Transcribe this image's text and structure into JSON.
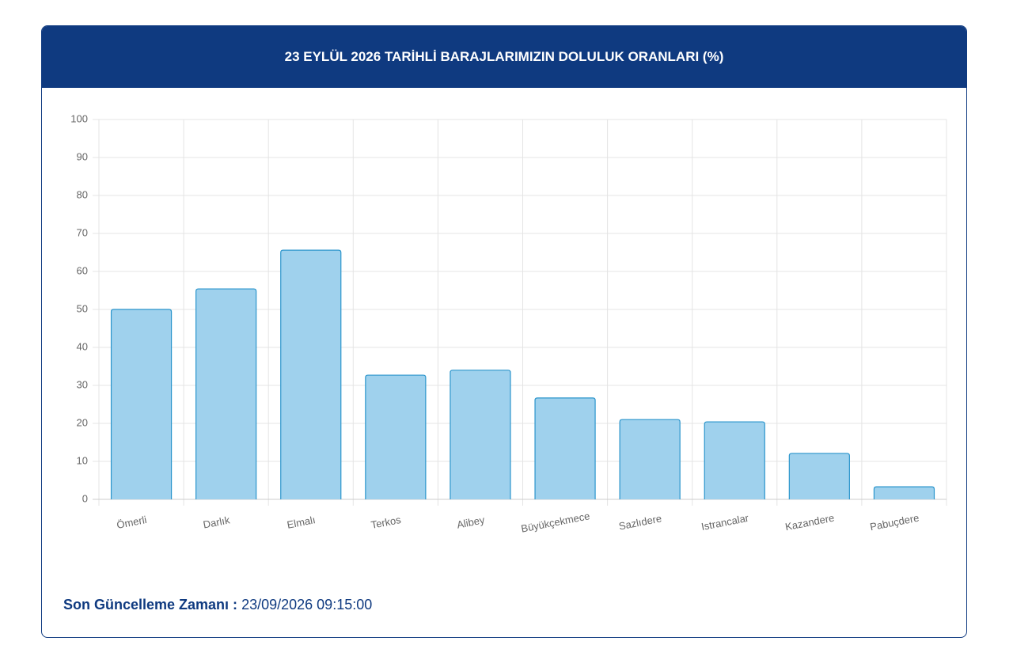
{
  "chart_data": {
    "type": "bar",
    "title": "23 EYLÜL 2026 TARİHLİ BARAJLARIMIZIN DOLULUK ORANLARI (%)",
    "categories": [
      "Ömerli",
      "Darlık",
      "Elmalı",
      "Terkos",
      "Alibey",
      "Büyükçekmece",
      "Sazlıdere",
      "Istrancalar",
      "Kazandere",
      "Pabuçdere"
    ],
    "values": [
      50.0,
      55.4,
      65.6,
      32.7,
      34.0,
      26.7,
      21.0,
      20.4,
      12.1,
      3.3
    ],
    "color": "#9fd1ed",
    "edge_color": "#2b95cc",
    "ylim": [
      0,
      100
    ],
    "yticks": [
      0,
      10,
      20,
      30,
      40,
      50,
      60,
      70,
      80,
      90,
      100
    ],
    "grid": true
  },
  "footer": {
    "label": "Son Güncelleme Zamanı :",
    "value": "23/09/2026 09:15:00"
  }
}
